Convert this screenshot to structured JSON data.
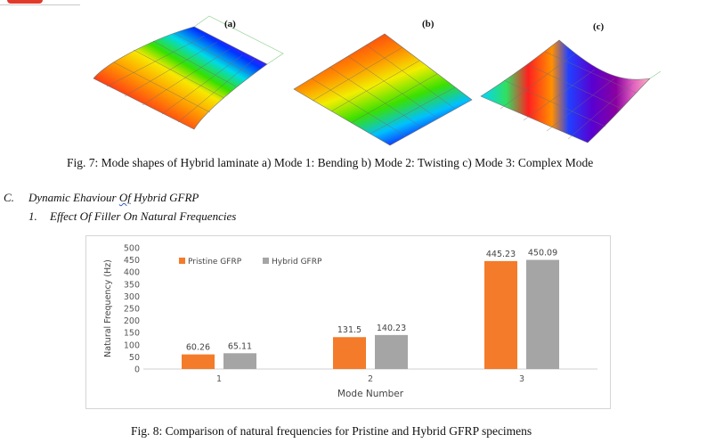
{
  "figure7": {
    "panels": [
      {
        "label": "(a)"
      },
      {
        "label": "(b)"
      },
      {
        "label": "(c)"
      }
    ],
    "caption": "Fig. 7: Mode shapes of Hybrid laminate a) Mode 1: Bending b) Mode 2: Twisting c) Mode 3: Complex Mode"
  },
  "section": {
    "letter": "C.",
    "title_pre": "Dynamic Ehaviour ",
    "title_flagged": "Of",
    "title_post": " Hybrid GFRP",
    "sub_number": "1.",
    "sub_title": "Effect Of Filler On Natural Frequencies"
  },
  "chart_data": {
    "type": "bar",
    "categories": [
      "1",
      "2",
      "3"
    ],
    "series": [
      {
        "name": "Pristine GFRP",
        "values": [
          60.26,
          131.5,
          445.23
        ],
        "labels": [
          "60.26",
          "131.5",
          "445.23"
        ],
        "color": "#f47b2a"
      },
      {
        "name": "Hybrid GFRP",
        "values": [
          65.11,
          140.23,
          450.09
        ],
        "labels": [
          "65.11",
          "140.23",
          "450.09"
        ],
        "color": "#a5a5a5"
      }
    ],
    "xlabel": "Mode Number",
    "ylabel": "Natural Frequency (Hz)",
    "ylim": [
      0,
      500
    ],
    "yticks": [
      0,
      50,
      100,
      150,
      200,
      250,
      300,
      350,
      400,
      450,
      500
    ],
    "grid": false,
    "legend_position": "top-left"
  },
  "figure8": {
    "caption": "Fig. 8: Comparison of natural frequencies for Pristine and Hybrid GFRP specimens"
  }
}
